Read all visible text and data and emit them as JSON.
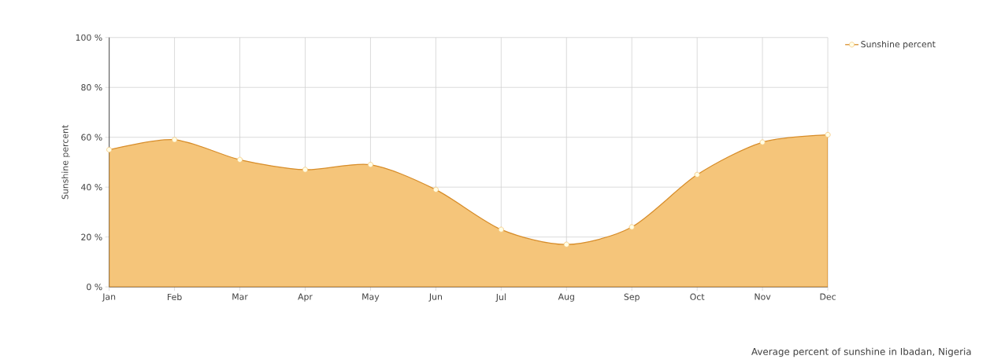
{
  "chart_data": {
    "type": "area",
    "ylabel": "Sunshine percent",
    "categories": [
      "Jan",
      "Feb",
      "Mar",
      "Apr",
      "May",
      "Jun",
      "Jul",
      "Aug",
      "Sep",
      "Oct",
      "Nov",
      "Dec"
    ],
    "series": [
      {
        "name": "Sunshine percent",
        "color": "#f5c57a",
        "values": [
          55,
          59,
          51,
          47,
          49,
          39,
          23,
          17,
          24,
          45,
          58,
          61
        ]
      }
    ],
    "ylim": [
      0,
      100
    ],
    "yticks": [
      {
        "value": 0,
        "label": "0 %"
      },
      {
        "value": 20,
        "label": "20 %"
      },
      {
        "value": 40,
        "label": "40 %"
      },
      {
        "value": 60,
        "label": "60 %"
      },
      {
        "value": 80,
        "label": "80 %"
      },
      {
        "value": 100,
        "label": "100 %"
      }
    ],
    "grid": true,
    "legend": "top right",
    "marker": "circle",
    "annotations": [
      "Average percent of sunshine in Ibadan, Nigeria"
    ]
  }
}
